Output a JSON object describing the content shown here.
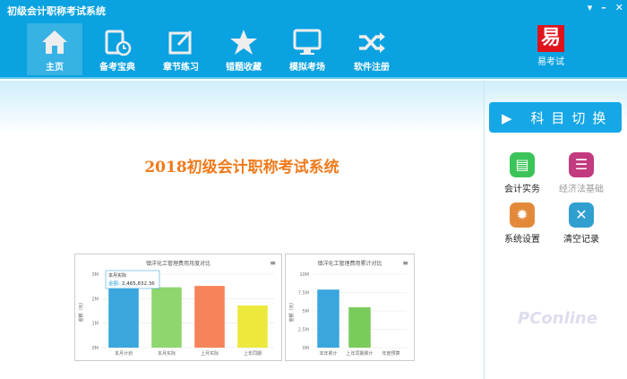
{
  "window": {
    "title": "初级会计职称考试系统",
    "controls": [
      "▾",
      "–",
      "✕"
    ]
  },
  "toolbar": {
    "items": [
      {
        "label": "主页",
        "icon": "home-icon",
        "active": true
      },
      {
        "label": "备考宝典",
        "icon": "notebook-clock-icon"
      },
      {
        "label": "章节练习",
        "icon": "edit-icon"
      },
      {
        "label": "错题收藏",
        "icon": "star-icon"
      },
      {
        "label": "模拟考场",
        "icon": "monitor-icon"
      },
      {
        "label": "软件注册",
        "icon": "shuffle-icon"
      }
    ],
    "logo": {
      "glyph": "易",
      "label": "易考试"
    }
  },
  "main": {
    "title": "2018初级会计职称考试系统"
  },
  "side": {
    "switch_label": "科目切换",
    "items": [
      {
        "label": "会计实务",
        "icon": "clipboard-icon",
        "color": "#3cc45a"
      },
      {
        "label": "经济法基础",
        "icon": "list-icon",
        "color": "#c23a7f",
        "disabled": true
      },
      {
        "label": "系统设置",
        "icon": "gear-icon",
        "color": "#e38a3a"
      },
      {
        "label": "清空记录",
        "icon": "close-icon",
        "color": "#2f9fd0"
      }
    ]
  },
  "chart_data": [
    {
      "type": "bar",
      "title": "镇洋化工管理费用月度对比",
      "ylabel": "金额（元）",
      "ylim": [
        0,
        3000000
      ],
      "yticks": [
        "0M",
        "1M",
        "2M",
        "3M"
      ],
      "categories": [
        "本月计划",
        "本月实际",
        "上月实际",
        "上年同期"
      ],
      "values": [
        2650000,
        2465832.36,
        2520000,
        1720000
      ],
      "colors": [
        "#3aa6dd",
        "#8fd66f",
        "#f7835a",
        "#ece93c"
      ],
      "tooltip": {
        "title": "本月实际",
        "label": "金额:",
        "value": "2,465,832.36"
      }
    },
    {
      "type": "bar",
      "title": "镇洋化工管理费用累计对比",
      "ylabel": "金额（元）",
      "ylim": [
        0,
        10000000
      ],
      "yticks": [
        "0M",
        "2.5M",
        "5M",
        "7.5M",
        "10M"
      ],
      "categories": [
        "本年累计",
        "上年同期累计",
        "年度预算"
      ],
      "values": [
        7900000,
        5500000,
        0
      ],
      "colors": [
        "#3aa6dd",
        "#7acb5c",
        "#f7835a"
      ]
    }
  ]
}
